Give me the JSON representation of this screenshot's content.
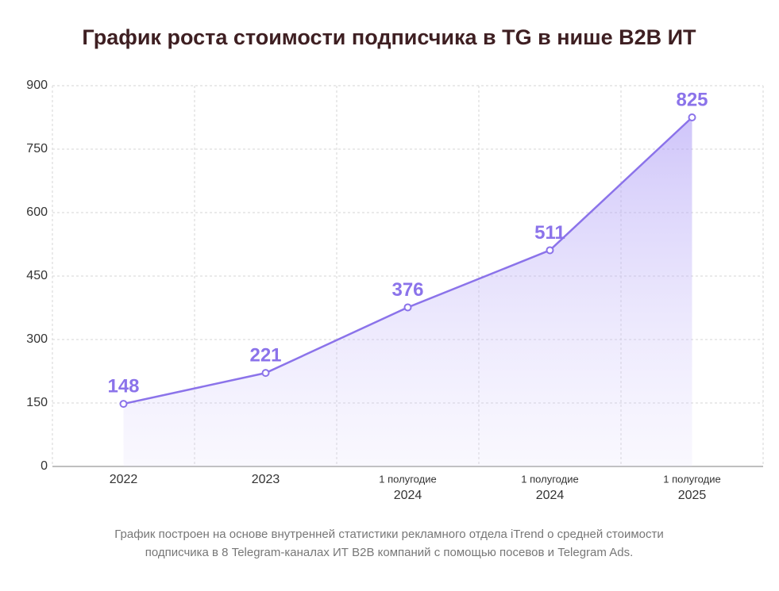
{
  "chart_data": {
    "type": "area-line",
    "title": "График роста стоимости подписчика в TG в нише B2B ИТ",
    "categories": [
      [
        "2022"
      ],
      [
        "2023"
      ],
      [
        "1 полугодие",
        "2024"
      ],
      [
        "1 полугодие",
        "2024"
      ],
      [
        "1 полугодие",
        "2025"
      ]
    ],
    "values": [
      148,
      221,
      376,
      511,
      825
    ],
    "color": "#8b73ea",
    "ylim": [
      0,
      900
    ],
    "yticks": [
      0,
      150,
      300,
      450,
      600,
      750,
      900
    ],
    "grid": true,
    "footnote": [
      "График построен на основе внутренней статистики рекламного отдела iTrend о средней стоимости",
      "подписчика в 8 Telegram-каналах ИТ B2B компаний с помощью посевов и Telegram Ads."
    ]
  }
}
